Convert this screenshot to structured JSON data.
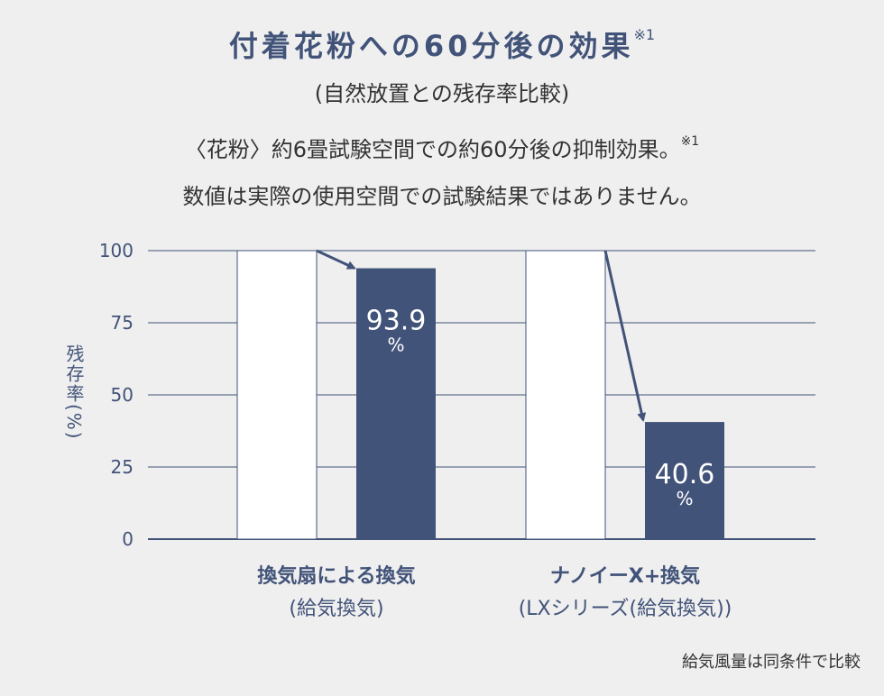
{
  "title": {
    "text": "付着花粉への60分後の効果",
    "mark": "※1",
    "subtitle": "(自然放置との残存率比較)"
  },
  "notes": {
    "line1": "〈花粉〉約6畳試験空間での約60分後の抑制効果。",
    "line1_mark": "※1",
    "line2": "数値は実際の使用空間での試験結果ではありません。"
  },
  "footnote": "給気風量は同条件で比較",
  "colors": {
    "accent": "#425379",
    "baseline_bar": "#ffffff",
    "grid": "#425379"
  },
  "chart_data": {
    "type": "bar",
    "ylabel": "残存率(%)",
    "ylim": [
      0,
      100
    ],
    "yticks": [
      "0",
      "25",
      "50",
      "75",
      "100"
    ],
    "grid": true,
    "groups": [
      {
        "label": "換気扇による換気",
        "sublabel": "(給気換気)",
        "baseline": 100,
        "value": 93.9,
        "value_label": "93.9",
        "unit": "%"
      },
      {
        "label": "ナノイーX+換気",
        "sublabel": "(LXシリーズ(給気換気))",
        "baseline": 100,
        "value": 40.6,
        "value_label": "40.6",
        "unit": "%"
      }
    ]
  }
}
